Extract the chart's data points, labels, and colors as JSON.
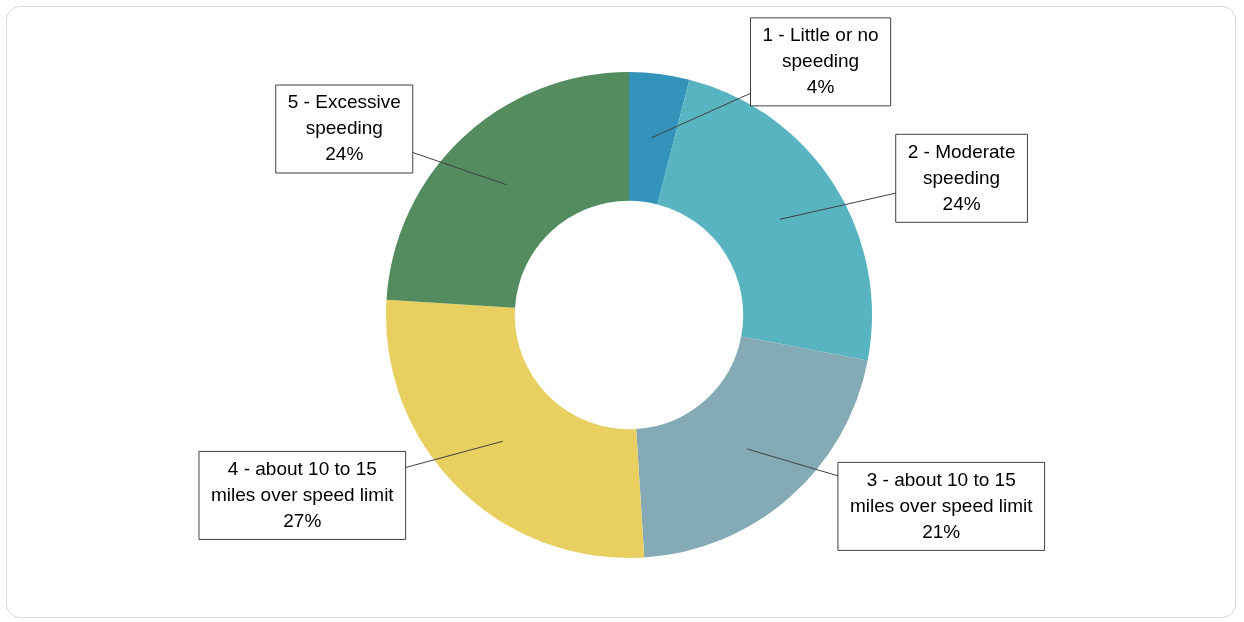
{
  "chart_data": {
    "type": "donut",
    "categories": [
      "1 - Little or no speeding",
      "2 - Moderate speeding",
      "3 - about 10 to 15 miles over speed limit",
      "4 - about 10 to 15 miles over speed limit",
      "5 - Excessive speeding"
    ],
    "values": [
      4,
      24,
      21,
      27,
      24
    ],
    "colors": [
      "#3393bb",
      "#58b4c1",
      "#84abb5",
      "#e8cf60",
      "#548c60"
    ],
    "value_labels": [
      "4%",
      "24%",
      "21%",
      "27%",
      "24%"
    ]
  }
}
